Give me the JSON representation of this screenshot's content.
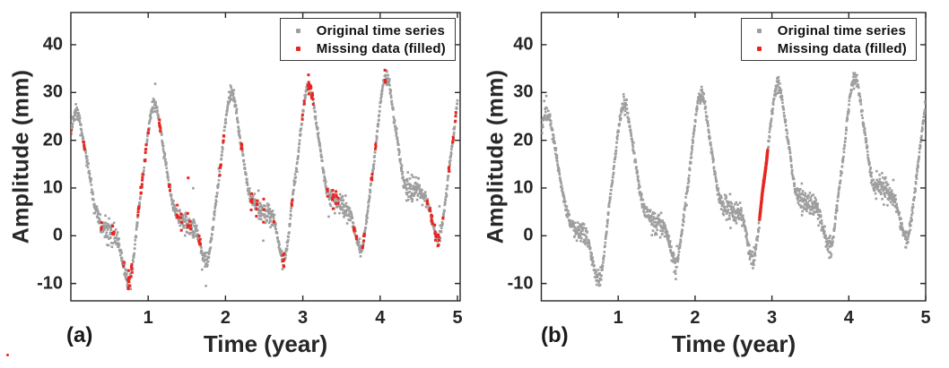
{
  "chart_data": {
    "type": "scatter",
    "title": "",
    "xlabel": "Time (year)",
    "ylabel": "Amplitude (mm)",
    "xlim": [
      0,
      5
    ],
    "ylim": [
      -13.6,
      46.8
    ],
    "x_ticks": [
      1,
      2,
      3,
      4,
      5
    ],
    "y_ticks": [
      -10,
      0,
      10,
      20,
      30,
      40
    ],
    "grid": false,
    "legend": {
      "position": "top-right",
      "entries": [
        {
          "label": "Original time series",
          "color": "#9e9e9e",
          "marker": "dot"
        },
        {
          "label": "Missing data (filled)",
          "color": "#e8251f",
          "marker": "square"
        }
      ]
    },
    "colors": {
      "original": "#9e9e9e",
      "missing": "#e8251f",
      "axis": "#262626"
    },
    "samples_per_panel": 1700,
    "noise_sigma_mm": {
      "flat": 1.45,
      "steep": 0.5
    },
    "signal_keypoints": [
      [
        0.0,
        22.0
      ],
      [
        0.07,
        26.0
      ],
      [
        0.2,
        16.5
      ],
      [
        0.33,
        5.0
      ],
      [
        0.45,
        1.0
      ],
      [
        0.58,
        0.0
      ],
      [
        0.75,
        -9.5
      ],
      [
        0.9,
        8.5
      ],
      [
        1.08,
        27.5
      ],
      [
        1.2,
        18.0
      ],
      [
        1.33,
        6.0
      ],
      [
        1.48,
        2.8
      ],
      [
        1.6,
        1.8
      ],
      [
        1.75,
        -5.5
      ],
      [
        1.9,
        10.0
      ],
      [
        2.08,
        30.0
      ],
      [
        2.2,
        19.5
      ],
      [
        2.33,
        7.5
      ],
      [
        2.48,
        5.2
      ],
      [
        2.6,
        4.2
      ],
      [
        2.75,
        -4.8
      ],
      [
        2.9,
        12.0
      ],
      [
        3.08,
        31.5
      ],
      [
        3.2,
        21.0
      ],
      [
        3.33,
        8.5
      ],
      [
        3.48,
        6.6
      ],
      [
        3.6,
        5.2
      ],
      [
        3.75,
        -2.6
      ],
      [
        3.9,
        13.0
      ],
      [
        4.08,
        33.5
      ],
      [
        4.2,
        22.5
      ],
      [
        4.33,
        10.5
      ],
      [
        4.48,
        9.6
      ],
      [
        4.6,
        7.2
      ],
      [
        4.75,
        -0.6
      ],
      [
        4.9,
        15.0
      ],
      [
        5.0,
        28.0
      ]
    ],
    "panels": [
      {
        "label": "(a)",
        "missing_mode": "random_runs_filled",
        "red_runs": 62,
        "red_run_len": [
          2,
          6
        ],
        "seed": 11
      },
      {
        "label": "(b)",
        "missing_mode": "single_gap_filled",
        "red_interval": [
          2.84,
          2.945
        ],
        "seed": 77
      }
    ]
  }
}
